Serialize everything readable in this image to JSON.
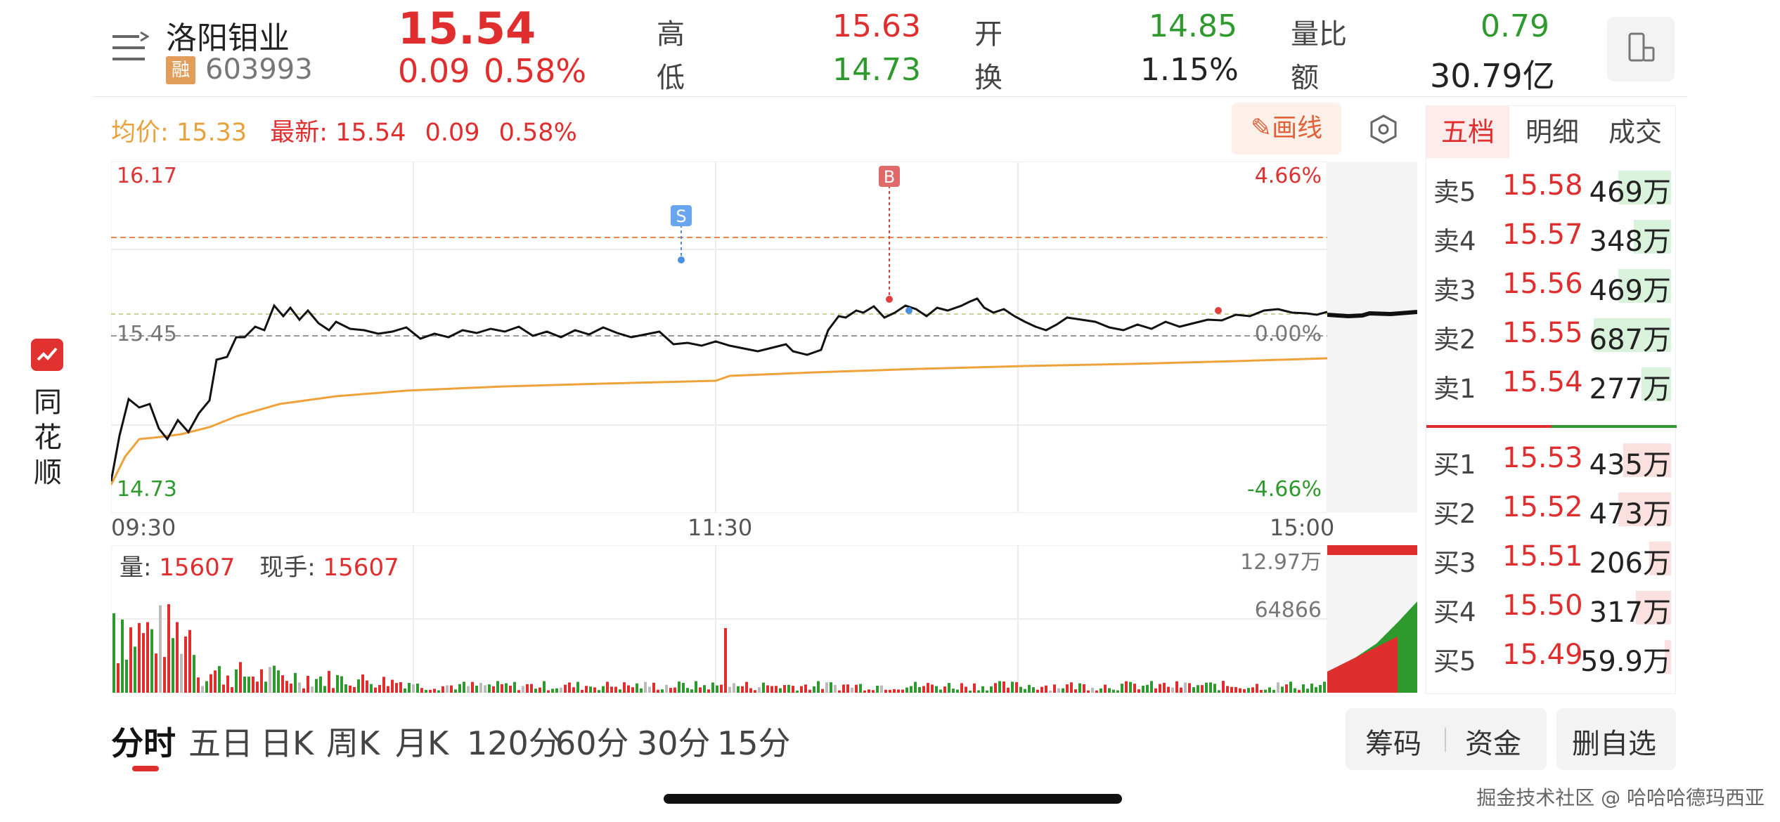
{
  "stock": {
    "name": "洛阳钼业",
    "badge": "融",
    "code": "603993",
    "price": "15.54",
    "change": "0.09",
    "change_pct": "0.58%"
  },
  "quote": {
    "high_label": "高",
    "high_value": "15.63",
    "low_label": "低",
    "low_value": "14.73",
    "open_label": "开",
    "open_value": "14.85",
    "turnover_label": "换",
    "turnover_value": "1.15%",
    "volratio_label": "量比",
    "volratio_value": "0.79",
    "amount_label": "额",
    "amount_value": "30.79亿"
  },
  "sidebar": {
    "chars": [
      "同",
      "花",
      "顺"
    ]
  },
  "info_bar": {
    "avg_label": "均价:",
    "avg_value": "15.33",
    "latest_label": "最新:",
    "latest_value": "15.54",
    "latest_change": "0.09",
    "latest_pct": "0.58%",
    "draw_label": "画线"
  },
  "chart": {
    "y_top": "16.17",
    "y_bottom": "14.73",
    "y_prev": "15.45",
    "pct_top": "4.66%",
    "pct_mid": "0.00%",
    "pct_bottom": "-4.66%",
    "times": [
      "09:30",
      "11:30",
      "15:00"
    ],
    "marker_s": "S",
    "marker_b": "B"
  },
  "volume": {
    "vol_label": "量:",
    "vol_value": "15607",
    "hand_label": "现手:",
    "hand_value": "15607",
    "max": "12.97万",
    "mid": "64866"
  },
  "book": {
    "tabs": [
      "五档",
      "明细",
      "成交"
    ],
    "sell": [
      {
        "label": "卖5",
        "price": "15.58",
        "vol": "469万",
        "bar": 0.68
      },
      {
        "label": "卖4",
        "price": "15.57",
        "vol": "348万",
        "bar": 0.48
      },
      {
        "label": "卖3",
        "price": "15.56",
        "vol": "469万",
        "bar": 0.68
      },
      {
        "label": "卖2",
        "price": "15.55",
        "vol": "687万",
        "bar": 1.0
      },
      {
        "label": "卖1",
        "price": "15.54",
        "vol": "277万",
        "bar": 0.38
      }
    ],
    "buy": [
      {
        "label": "买1",
        "price": "15.53",
        "vol": "435万",
        "bar": 0.62
      },
      {
        "label": "买2",
        "price": "15.52",
        "vol": "473万",
        "bar": 0.68
      },
      {
        "label": "买3",
        "price": "15.51",
        "vol": "206万",
        "bar": 0.28
      },
      {
        "label": "买4",
        "price": "15.50",
        "vol": "317万",
        "bar": 0.45
      },
      {
        "label": "买5",
        "price": "15.49",
        "vol": "59.9万",
        "bar": 0.08
      }
    ]
  },
  "tabs": [
    "分时",
    "五日",
    "日K",
    "周K",
    "月K",
    "120分",
    "60分",
    "30分",
    "15分"
  ],
  "buttons": {
    "chips": "筹码",
    "funds": "资金",
    "remove": "删自选"
  },
  "watermark": "掘金技术社区 @ 哈哈哈德玛西亚",
  "colors": {
    "up": "#e02e2e",
    "down": "#2e9a2e",
    "avg_line": "#f0a23a",
    "price_line": "#111111"
  }
}
